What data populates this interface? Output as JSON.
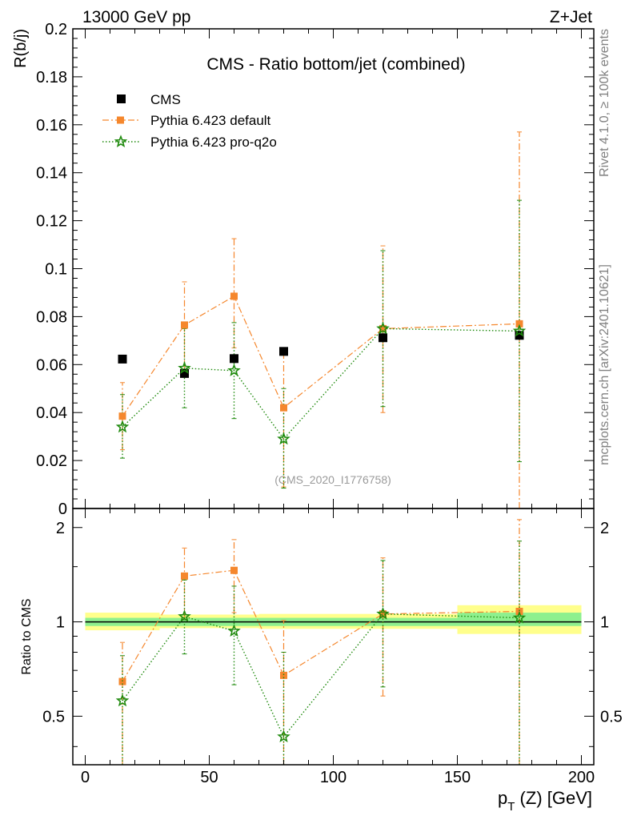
{
  "header": {
    "energy_label": "13000 GeV pp",
    "process_label": "Z+Jet",
    "side_label_top": "Rivet 4.1.0, ≥ 100k events",
    "side_label_bottom": "mcplots.cern.ch [arXiv:2401.10621]"
  },
  "colors": {
    "cms": "#000000",
    "pythia_default": "#f5872d",
    "pythia_proq2o": "#1f8a0d",
    "band_inner": "#8ef08e",
    "band_outer": "#ffff8c"
  },
  "chart_data": [
    {
      "type": "scatter",
      "panel": "main",
      "title": "CMS - Ratio bottom/jet (combined)",
      "watermark": "(CMS_2020_I1776758)",
      "xlabel": "p_T (Z) [GeV]",
      "ylabel": "R(b/j)",
      "xlim": [
        -5,
        205
      ],
      "ylim": [
        0,
        0.2
      ],
      "yticks": [
        "0",
        "0.02",
        "0.04",
        "0.06",
        "0.08",
        "0.1",
        "0.12",
        "0.14",
        "0.16",
        "0.18",
        "0.2"
      ],
      "x": [
        15,
        40,
        60,
        80,
        120,
        175
      ],
      "series": [
        {
          "name": "CMS",
          "style": "data",
          "values": [
            0.0623,
            0.0563,
            0.0625,
            0.0655,
            0.0712,
            0.0722
          ],
          "err": [
            0.001,
            0.001,
            0.001,
            0.001,
            0.001,
            0.001
          ]
        },
        {
          "name": "Pythia 6.423 default",
          "style": "dashdot",
          "values": [
            0.0385,
            0.0765,
            0.0885,
            0.042,
            0.075,
            0.077
          ],
          "err_lo": [
            0.0245,
            0.0575,
            0.067,
            0.009,
            0.04,
            0.0
          ],
          "err_hi": [
            0.0525,
            0.0945,
            0.1125,
            0.067,
            0.1095,
            0.157
          ]
        },
        {
          "name": "Pythia 6.423 pro-q2o",
          "style": "dotted",
          "values": [
            0.034,
            0.0585,
            0.0575,
            0.029,
            0.075,
            0.074
          ],
          "err_lo": [
            0.021,
            0.042,
            0.0375,
            0.0085,
            0.0425,
            0.0195
          ],
          "err_hi": [
            0.0475,
            0.075,
            0.0775,
            0.05,
            0.1075,
            0.1285
          ]
        }
      ],
      "legend": {
        "placement": "top-left"
      }
    },
    {
      "type": "scatter",
      "panel": "ratio",
      "ylabel": "Ratio to CMS",
      "xlim": [
        -5,
        205
      ],
      "ylim": [
        0.35,
        2.3
      ],
      "yscale": "log",
      "yticks": [
        "0.5",
        "1",
        "2"
      ],
      "xticks": [
        "0",
        "50",
        "100",
        "150",
        "200"
      ],
      "x": [
        15,
        40,
        60,
        80,
        120,
        175
      ],
      "bands": [
        {
          "x0": 0,
          "x1": 30,
          "inner": [
            0.97,
            1.03
          ],
          "outer": [
            0.94,
            1.07
          ]
        },
        {
          "x0": 30,
          "x1": 50,
          "inner": [
            0.97,
            1.03
          ],
          "outer": [
            0.955,
            1.055
          ]
        },
        {
          "x0": 50,
          "x1": 70,
          "inner": [
            0.97,
            1.03
          ],
          "outer": [
            0.955,
            1.055
          ]
        },
        {
          "x0": 70,
          "x1": 100,
          "inner": [
            0.97,
            1.03
          ],
          "outer": [
            0.95,
            1.06
          ]
        },
        {
          "x0": 100,
          "x1": 150,
          "inner": [
            0.97,
            1.03
          ],
          "outer": [
            0.95,
            1.06
          ]
        },
        {
          "x0": 150,
          "x1": 200,
          "inner": [
            0.97,
            1.07
          ],
          "outer": [
            0.915,
            1.13
          ]
        }
      ],
      "series": [
        {
          "name": "Pythia 6.423 default",
          "style": "dashdot",
          "values": [
            0.645,
            1.4,
            1.46,
            0.675,
            1.06,
            1.08
          ],
          "err_lo": [
            0.33,
            1.02,
            1.07,
            0.14,
            0.58,
            0.3
          ],
          "err_hi": [
            0.86,
            1.72,
            1.83,
            1.01,
            1.6,
            2.12
          ]
        },
        {
          "name": "Pythia 6.423 pro-q2o",
          "style": "dotted",
          "values": [
            0.56,
            1.04,
            0.935,
            0.43,
            1.06,
            1.03
          ],
          "err_lo": [
            0.33,
            0.79,
            0.63,
            0.13,
            0.62,
            0.28
          ],
          "err_hi": [
            0.78,
            1.36,
            1.3,
            0.8,
            1.57,
            1.81
          ]
        }
      ]
    }
  ]
}
